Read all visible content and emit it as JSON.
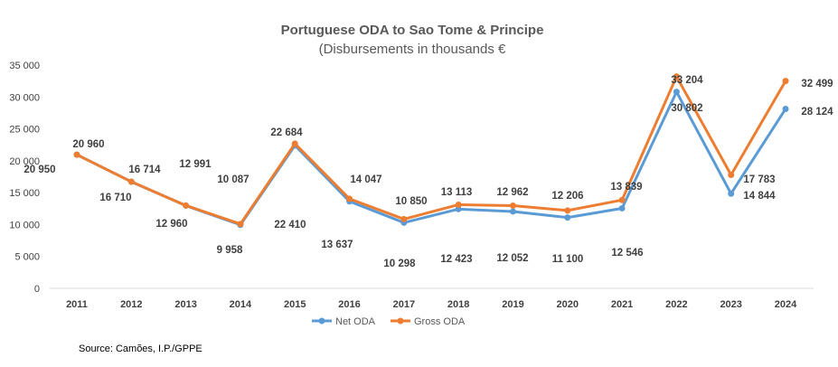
{
  "chart_data": {
    "type": "line",
    "title": "Portuguese ODA to Sao Tome & Principe",
    "subtitle": "(Disbursements in thousands €",
    "x": [
      "2011",
      "2012",
      "2013",
      "2014",
      "2015",
      "2016",
      "2017",
      "2018",
      "2019",
      "2020",
      "2021",
      "2022",
      "2023",
      "2024"
    ],
    "series": [
      {
        "name": "Net ODA",
        "color": "#5B9BD5",
        "values": [
          20950,
          16710,
          12960,
          9958,
          22410,
          13637,
          10298,
          12423,
          12052,
          11100,
          12546,
          30802,
          14844,
          28124
        ],
        "labels": [
          "20 950",
          "16 710",
          "12 960",
          "9 958",
          "22 410",
          "13 637",
          "10 298",
          "12 423",
          "12 052",
          "11 100",
          "12 546",
          "30 802",
          "14 844",
          "28 124"
        ]
      },
      {
        "name": "Gross ODA",
        "color": "#ED7D31",
        "values": [
          20960,
          16714,
          12991,
          10087,
          22684,
          14047,
          10850,
          13113,
          12962,
          12206,
          13839,
          33204,
          17783,
          32499
        ],
        "labels": [
          "20 960",
          "16 714",
          "12 991",
          "10 087",
          "22 684",
          "14 047",
          "10 850",
          "13 113",
          "12 962",
          "12 206",
          "13 839",
          "33 204",
          "17 783",
          "32 499"
        ]
      }
    ],
    "ylim": [
      0,
      35000
    ],
    "yticks": [
      0,
      5000,
      10000,
      15000,
      20000,
      25000,
      30000,
      35000
    ],
    "ytick_labels": [
      "0",
      "5 000",
      "10 000",
      "15 000",
      "20 000",
      "25 000",
      "30 000",
      "35 000"
    ],
    "grid": false,
    "legend": "bottom",
    "source": "Source: Camões, I.P./GPPE"
  }
}
